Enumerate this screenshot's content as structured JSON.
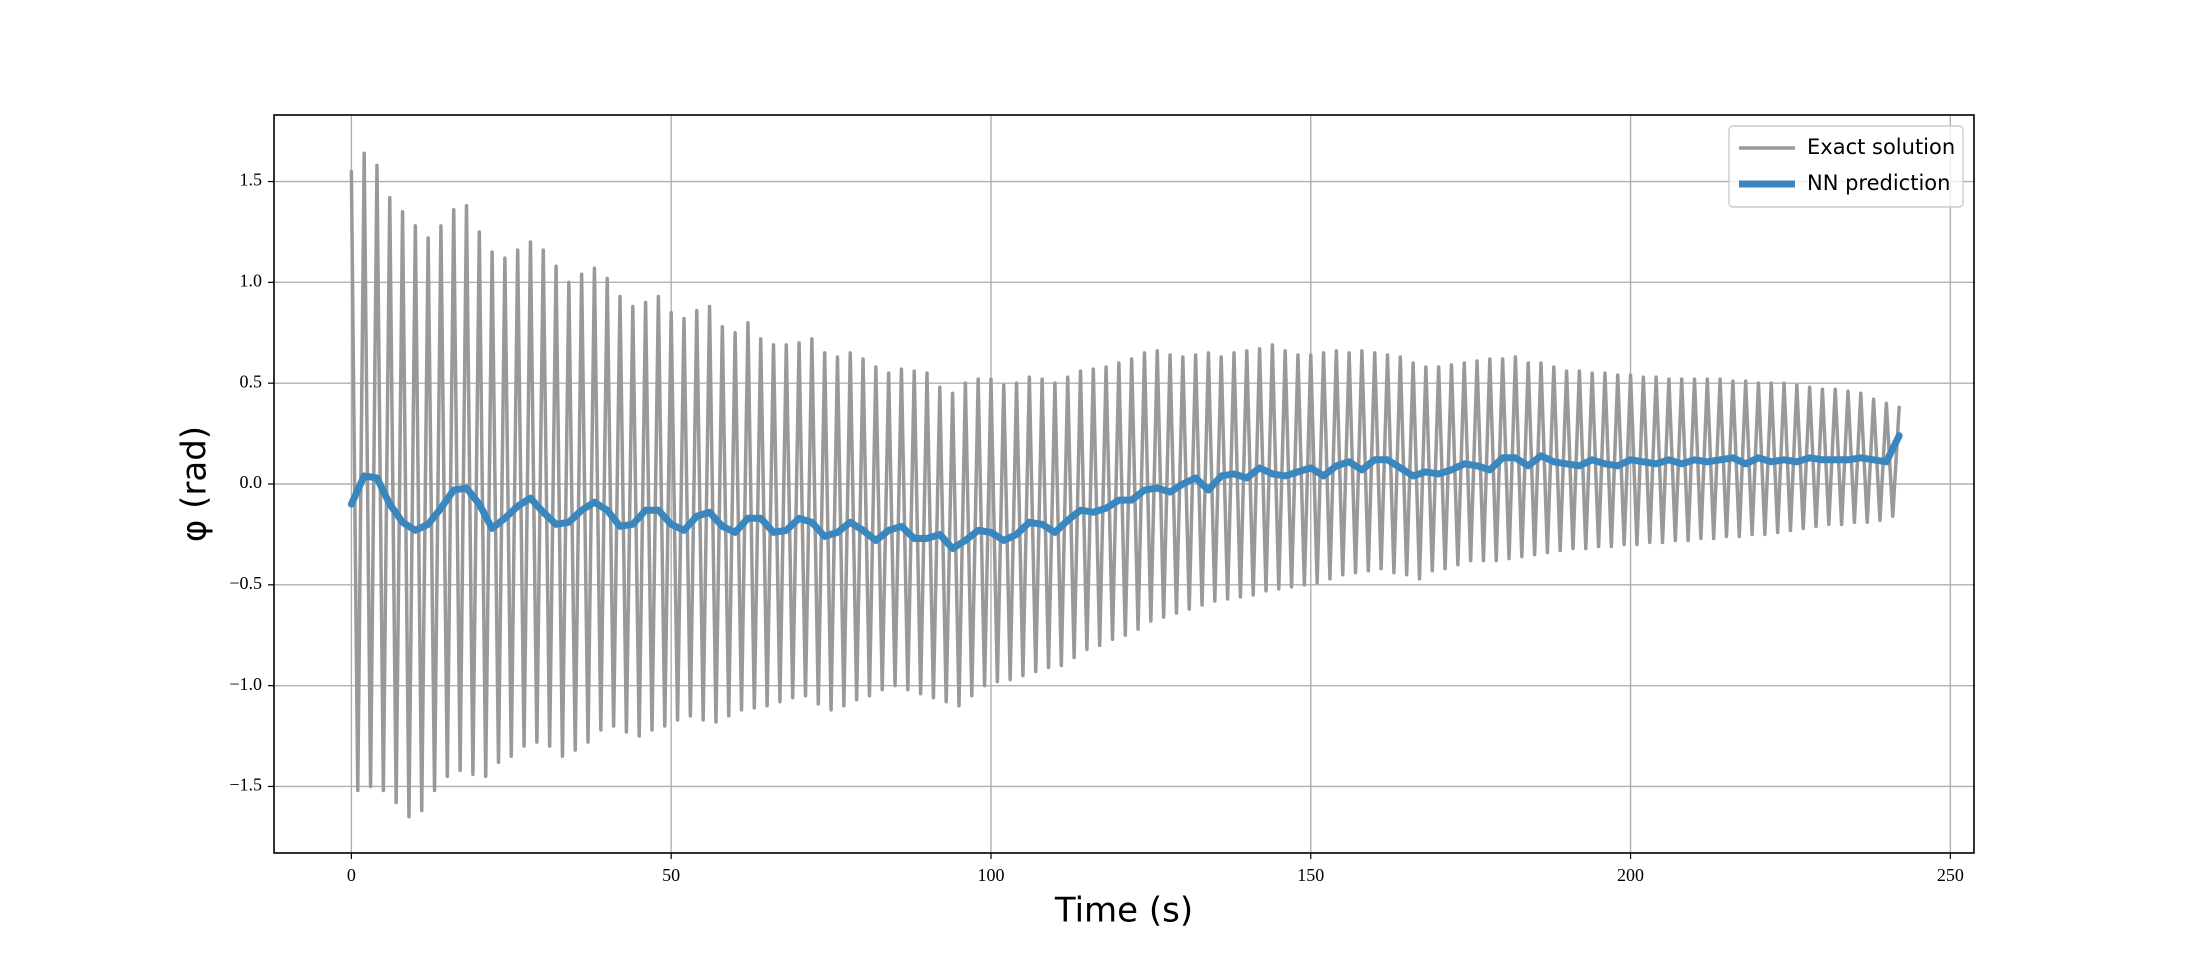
{
  "chart_data": {
    "type": "line",
    "x_label": "Time (s)",
    "y_label": "φ (rad)",
    "xlim": [
      -12.1,
      253.7
    ],
    "ylim": [
      -1.83,
      1.83
    ],
    "xticks": [
      0,
      50,
      100,
      150,
      200,
      250
    ],
    "yticks": [
      {
        "value": -1.5,
        "label": "−1.5"
      },
      {
        "value": -1.0,
        "label": "−1.0"
      },
      {
        "value": -0.5,
        "label": "−0.5"
      },
      {
        "value": 0.0,
        "label": "0.0"
      },
      0.5,
      {
        "value": 1.0,
        "label": "1.0"
      },
      1.5
    ],
    "grid": true,
    "legend": "upper right",
    "series": [
      {
        "name": "Exact solution",
        "color": "#999999",
        "x": [
          0,
          1,
          2,
          3,
          4,
          5,
          6,
          7,
          8,
          9,
          10,
          11,
          12,
          13,
          14,
          15,
          16,
          17,
          18,
          19,
          20,
          21,
          22,
          23,
          24,
          25,
          26,
          27,
          28,
          29,
          30,
          31,
          32,
          33,
          34,
          35,
          36,
          37,
          38,
          39,
          40,
          41,
          42,
          43,
          44,
          45,
          46,
          47,
          48,
          49,
          50,
          51,
          52,
          53,
          54,
          55,
          56,
          57,
          58,
          59,
          60,
          61,
          62,
          63,
          64,
          65,
          66,
          67,
          68,
          69,
          70,
          71,
          72,
          73,
          74,
          75,
          76,
          77,
          78,
          79,
          80,
          81,
          82,
          83,
          84,
          85,
          86,
          87,
          88,
          89,
          90,
          91,
          92,
          93,
          94,
          95,
          96,
          97,
          98,
          99,
          100,
          101,
          102,
          103,
          104,
          105,
          106,
          107,
          108,
          109,
          110,
          111,
          112,
          113,
          114,
          115,
          116,
          117,
          118,
          119,
          120,
          121,
          122,
          123,
          124,
          125,
          126,
          127,
          128,
          129,
          130,
          131,
          132,
          133,
          134,
          135,
          136,
          137,
          138,
          139,
          140,
          141,
          142,
          143,
          144,
          145,
          146,
          147,
          148,
          149,
          150,
          151,
          152,
          153,
          154,
          155,
          156,
          157,
          158,
          159,
          160,
          161,
          162,
          163,
          164,
          165,
          166,
          167,
          168,
          169,
          170,
          171,
          172,
          173,
          174,
          175,
          176,
          177,
          178,
          179,
          180,
          181,
          182,
          183,
          184,
          185,
          186,
          187,
          188,
          189,
          190,
          191,
          192,
          193,
          194,
          195,
          196,
          197,
          198,
          199,
          200,
          201,
          202,
          203,
          204,
          205,
          206,
          207,
          208,
          209,
          210,
          211,
          212,
          213,
          214,
          215,
          216,
          217,
          218,
          219,
          220,
          221,
          222,
          223,
          224,
          225,
          226,
          227,
          228,
          229,
          230,
          231,
          232,
          233,
          234,
          235,
          236,
          237,
          238,
          239,
          240,
          241,
          242
        ],
        "values": [
          1.55,
          -1.52,
          1.64,
          -1.5,
          1.58,
          -1.52,
          1.42,
          -1.58,
          1.35,
          -1.65,
          1.28,
          -1.62,
          1.22,
          -1.52,
          1.28,
          -1.45,
          1.36,
          -1.42,
          1.38,
          -1.44,
          1.25,
          -1.45,
          1.15,
          -1.38,
          1.12,
          -1.35,
          1.16,
          -1.3,
          1.2,
          -1.28,
          1.16,
          -1.3,
          1.08,
          -1.35,
          1.0,
          -1.32,
          1.04,
          -1.28,
          1.07,
          -1.22,
          1.02,
          -1.2,
          0.93,
          -1.23,
          0.88,
          -1.25,
          0.9,
          -1.22,
          0.93,
          -1.2,
          0.85,
          -1.17,
          0.82,
          -1.15,
          0.86,
          -1.17,
          0.88,
          -1.18,
          0.78,
          -1.15,
          0.75,
          -1.12,
          0.8,
          -1.11,
          0.72,
          -1.1,
          0.69,
          -1.08,
          0.69,
          -1.06,
          0.7,
          -1.05,
          0.72,
          -1.09,
          0.65,
          -1.12,
          0.63,
          -1.1,
          0.65,
          -1.07,
          0.62,
          -1.05,
          0.58,
          -1.02,
          0.55,
          -1.0,
          0.57,
          -1.02,
          0.56,
          -1.04,
          0.55,
          -1.06,
          0.48,
          -1.08,
          0.45,
          -1.1,
          0.5,
          -1.05,
          0.52,
          -1.0,
          0.52,
          -0.98,
          0.49,
          -0.97,
          0.5,
          -0.95,
          0.53,
          -0.93,
          0.52,
          -0.91,
          0.5,
          -0.9,
          0.53,
          -0.86,
          0.56,
          -0.82,
          0.57,
          -0.8,
          0.58,
          -0.77,
          0.6,
          -0.75,
          0.62,
          -0.72,
          0.65,
          -0.68,
          0.66,
          -0.66,
          0.64,
          -0.64,
          0.63,
          -0.62,
          0.64,
          -0.6,
          0.65,
          -0.58,
          0.63,
          -0.57,
          0.65,
          -0.56,
          0.66,
          -0.55,
          0.67,
          -0.53,
          0.69,
          -0.52,
          0.66,
          -0.51,
          0.64,
          -0.5,
          0.64,
          -0.49,
          0.65,
          -0.47,
          0.66,
          -0.45,
          0.65,
          -0.44,
          0.66,
          -0.43,
          0.65,
          -0.42,
          0.64,
          -0.44,
          0.63,
          -0.45,
          0.6,
          -0.47,
          0.58,
          -0.43,
          0.58,
          -0.42,
          0.59,
          -0.4,
          0.6,
          -0.38,
          0.61,
          -0.38,
          0.62,
          -0.38,
          0.62,
          -0.37,
          0.63,
          -0.36,
          0.6,
          -0.35,
          0.6,
          -0.34,
          0.58,
          -0.33,
          0.56,
          -0.32,
          0.56,
          -0.32,
          0.55,
          -0.31,
          0.55,
          -0.31,
          0.54,
          -0.3,
          0.54,
          -0.3,
          0.53,
          -0.29,
          0.53,
          -0.29,
          0.52,
          -0.28,
          0.52,
          -0.28,
          0.52,
          -0.27,
          0.52,
          -0.27,
          0.52,
          -0.26,
          0.51,
          -0.26,
          0.51,
          -0.25,
          0.5,
          -0.25,
          0.5,
          -0.24,
          0.5,
          -0.23,
          0.49,
          -0.22,
          0.48,
          -0.21,
          0.47,
          -0.2,
          0.47,
          -0.2,
          0.46,
          -0.19,
          0.45,
          -0.19,
          0.42,
          -0.18,
          0.4,
          -0.16,
          0.38
        ]
      },
      {
        "name": "NN prediction",
        "color": "#3a87c0",
        "x": [
          0,
          2,
          4,
          6,
          8,
          10,
          12,
          14,
          16,
          18,
          20,
          22,
          24,
          26,
          28,
          30,
          32,
          34,
          36,
          38,
          40,
          42,
          44,
          46,
          48,
          50,
          52,
          54,
          56,
          58,
          60,
          62,
          64,
          66,
          68,
          70,
          72,
          74,
          76,
          78,
          80,
          82,
          84,
          86,
          88,
          90,
          92,
          94,
          96,
          98,
          100,
          102,
          104,
          106,
          108,
          110,
          112,
          114,
          116,
          118,
          120,
          122,
          124,
          126,
          128,
          130,
          132,
          134,
          136,
          138,
          140,
          142,
          144,
          146,
          148,
          150,
          152,
          154,
          156,
          158,
          160,
          162,
          164,
          166,
          168,
          170,
          172,
          174,
          176,
          178,
          180,
          182,
          184,
          186,
          188,
          190,
          192,
          194,
          196,
          198,
          200,
          202,
          204,
          206,
          208,
          210,
          212,
          214,
          216,
          218,
          220,
          222,
          224,
          226,
          228,
          230,
          232,
          234,
          236,
          238,
          240,
          242
        ],
        "values": [
          -0.1,
          0.04,
          0.03,
          -0.1,
          -0.19,
          -0.23,
          -0.2,
          -0.12,
          -0.03,
          -0.02,
          -0.1,
          -0.22,
          -0.17,
          -0.11,
          -0.07,
          -0.14,
          -0.2,
          -0.19,
          -0.13,
          -0.09,
          -0.13,
          -0.21,
          -0.2,
          -0.13,
          -0.13,
          -0.2,
          -0.23,
          -0.16,
          -0.14,
          -0.21,
          -0.24,
          -0.17,
          -0.17,
          -0.24,
          -0.23,
          -0.17,
          -0.19,
          -0.26,
          -0.24,
          -0.19,
          -0.23,
          -0.28,
          -0.23,
          -0.21,
          -0.27,
          -0.27,
          -0.25,
          -0.32,
          -0.28,
          -0.23,
          -0.24,
          -0.28,
          -0.25,
          -0.19,
          -0.2,
          -0.24,
          -0.18,
          -0.13,
          -0.14,
          -0.12,
          -0.08,
          -0.08,
          -0.03,
          -0.02,
          -0.04,
          0.0,
          0.03,
          -0.03,
          0.04,
          0.05,
          0.03,
          0.08,
          0.05,
          0.04,
          0.06,
          0.08,
          0.04,
          0.09,
          0.11,
          0.07,
          0.12,
          0.12,
          0.08,
          0.04,
          0.06,
          0.05,
          0.07,
          0.1,
          0.09,
          0.07,
          0.13,
          0.13,
          0.09,
          0.14,
          0.11,
          0.1,
          0.09,
          0.12,
          0.1,
          0.09,
          0.12,
          0.11,
          0.1,
          0.12,
          0.1,
          0.12,
          0.11,
          0.12,
          0.13,
          0.1,
          0.13,
          0.11,
          0.12,
          0.11,
          0.13,
          0.12,
          0.12,
          0.12,
          0.13,
          0.12,
          0.11,
          0.24
        ]
      }
    ]
  }
}
